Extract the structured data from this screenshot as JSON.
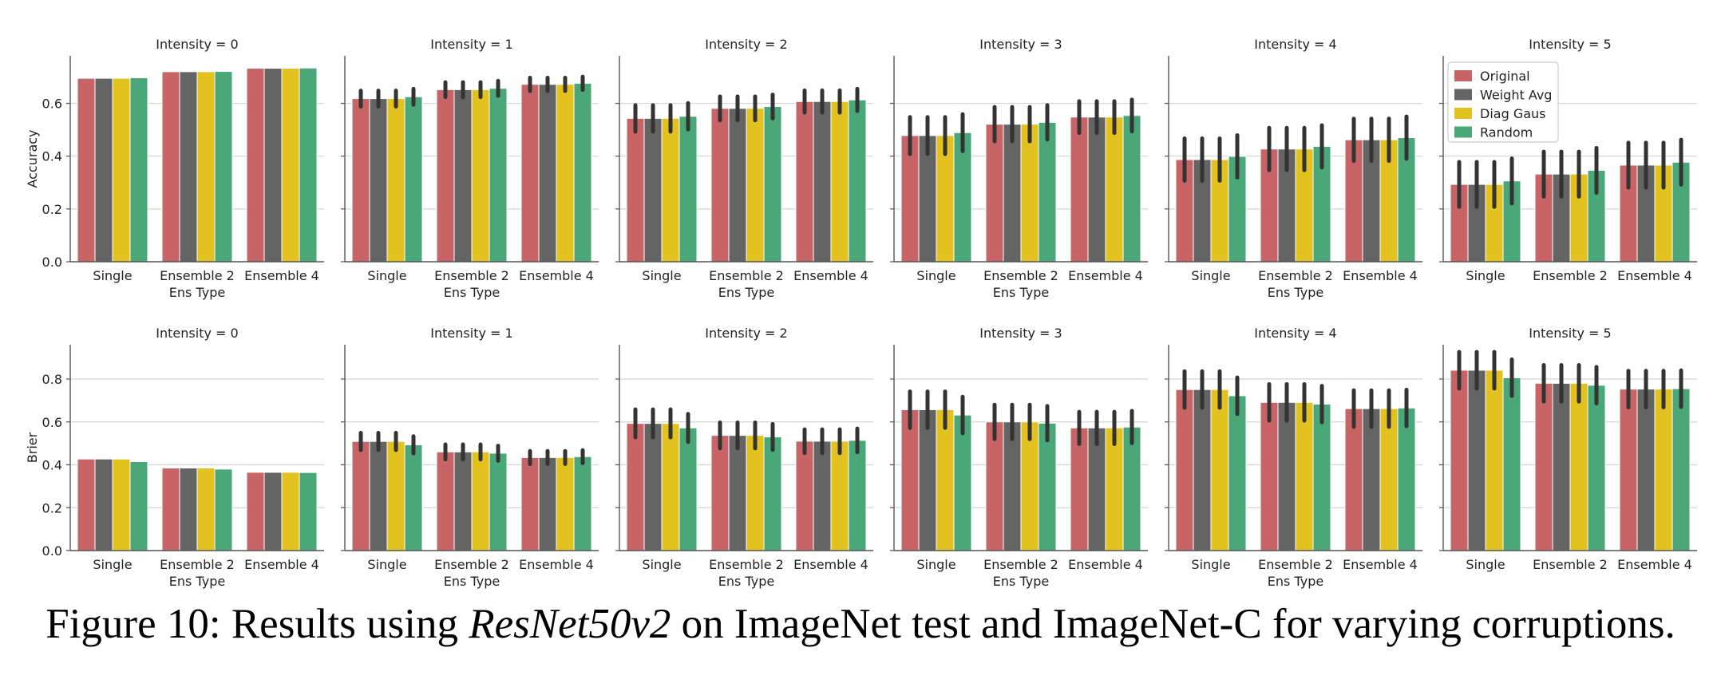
{
  "colors": {
    "Original": "#c96466",
    "Weight Avg": "#646464",
    "Diag Gaus": "#e3c11f",
    "Random": "#4aa778",
    "errbar": "#333333",
    "grid": "#d4d4d4",
    "axis": "#555555"
  },
  "legend": {
    "panel": "row1-intensity-5",
    "placement": "top-left",
    "entries": [
      "Original",
      "Weight Avg",
      "Diag Gaus",
      "Random"
    ]
  },
  "caption": {
    "prefix": "Figure 10: Results using ",
    "model": "ResNet50v2",
    "suffix": " on ImageNet test and ImageNet-C for varying corruptions."
  },
  "chart_data": [
    {
      "type": "bar",
      "row": "accuracy",
      "ylabel": "Accuracy",
      "xlabel": "Ens Type",
      "yticks": [
        0.0,
        0.2,
        0.4,
        0.6
      ],
      "ylim": [
        0,
        0.78
      ],
      "grid": true,
      "categories": [
        "Single",
        "Ensemble 2",
        "Ensemble 4"
      ],
      "panels": [
        {
          "title": "Intensity = 0",
          "series": [
            {
              "name": "Original",
              "values": [
                0.695,
                0.72,
                0.733
              ],
              "err": [
                0,
                0,
                0
              ]
            },
            {
              "name": "Weight Avg",
              "values": [
                0.695,
                0.72,
                0.733
              ],
              "err": [
                0,
                0,
                0
              ]
            },
            {
              "name": "Diag Gaus",
              "values": [
                0.695,
                0.72,
                0.733
              ],
              "err": [
                0,
                0,
                0
              ]
            },
            {
              "name": "Random",
              "values": [
                0.697,
                0.721,
                0.734
              ],
              "err": [
                0,
                0,
                0
              ]
            }
          ]
        },
        {
          "title": "Intensity = 1",
          "series": [
            {
              "name": "Original",
              "values": [
                0.618,
                0.652,
                0.672
              ],
              "err": [
                0.03,
                0.028,
                0.025
              ]
            },
            {
              "name": "Weight Avg",
              "values": [
                0.618,
                0.652,
                0.672
              ],
              "err": [
                0.03,
                0.028,
                0.025
              ]
            },
            {
              "name": "Diag Gaus",
              "values": [
                0.618,
                0.652,
                0.672
              ],
              "err": [
                0.03,
                0.028,
                0.025
              ]
            },
            {
              "name": "Random",
              "values": [
                0.625,
                0.657,
                0.676
              ],
              "err": [
                0.03,
                0.028,
                0.025
              ]
            }
          ]
        },
        {
          "title": "Intensity = 2",
          "series": [
            {
              "name": "Original",
              "values": [
                0.543,
                0.581,
                0.607
              ],
              "err": [
                0.05,
                0.045,
                0.042
              ]
            },
            {
              "name": "Weight Avg",
              "values": [
                0.543,
                0.581,
                0.607
              ],
              "err": [
                0.05,
                0.045,
                0.042
              ]
            },
            {
              "name": "Diag Gaus",
              "values": [
                0.543,
                0.581,
                0.607
              ],
              "err": [
                0.05,
                0.045,
                0.042
              ]
            },
            {
              "name": "Random",
              "values": [
                0.551,
                0.588,
                0.613
              ],
              "err": [
                0.05,
                0.045,
                0.042
              ]
            }
          ]
        },
        {
          "title": "Intensity = 3",
          "series": [
            {
              "name": "Original",
              "values": [
                0.478,
                0.521,
                0.548
              ],
              "err": [
                0.07,
                0.065,
                0.06
              ]
            },
            {
              "name": "Weight Avg",
              "values": [
                0.478,
                0.521,
                0.548
              ],
              "err": [
                0.07,
                0.065,
                0.06
              ]
            },
            {
              "name": "Diag Gaus",
              "values": [
                0.478,
                0.521,
                0.548
              ],
              "err": [
                0.07,
                0.065,
                0.06
              ]
            },
            {
              "name": "Random",
              "values": [
                0.489,
                0.528,
                0.554
              ],
              "err": [
                0.07,
                0.065,
                0.06
              ]
            }
          ]
        },
        {
          "title": "Intensity = 4",
          "series": [
            {
              "name": "Original",
              "values": [
                0.387,
                0.427,
                0.462
              ],
              "err": [
                0.08,
                0.08,
                0.08
              ]
            },
            {
              "name": "Weight Avg",
              "values": [
                0.387,
                0.427,
                0.462
              ],
              "err": [
                0.08,
                0.08,
                0.08
              ]
            },
            {
              "name": "Diag Gaus",
              "values": [
                0.387,
                0.427,
                0.462
              ],
              "err": [
                0.08,
                0.08,
                0.08
              ]
            },
            {
              "name": "Random",
              "values": [
                0.399,
                0.437,
                0.47
              ],
              "err": [
                0.08,
                0.08,
                0.08
              ]
            }
          ]
        },
        {
          "title": "Intensity = 5",
          "series": [
            {
              "name": "Original",
              "values": [
                0.293,
                0.332,
                0.366
              ],
              "err": [
                0.085,
                0.085,
                0.085
              ]
            },
            {
              "name": "Weight Avg",
              "values": [
                0.293,
                0.332,
                0.366
              ],
              "err": [
                0.085,
                0.085,
                0.085
              ]
            },
            {
              "name": "Diag Gaus",
              "values": [
                0.293,
                0.332,
                0.366
              ],
              "err": [
                0.085,
                0.085,
                0.085
              ]
            },
            {
              "name": "Random",
              "values": [
                0.306,
                0.346,
                0.377
              ],
              "err": [
                0.085,
                0.085,
                0.085
              ]
            }
          ]
        }
      ]
    },
    {
      "type": "bar",
      "row": "brier",
      "ylabel": "Brier",
      "xlabel": "Ens Type",
      "yticks": [
        0.0,
        0.2,
        0.4,
        0.6,
        0.8
      ],
      "ylim": [
        0,
        0.96
      ],
      "grid": true,
      "categories": [
        "Single",
        "Ensemble 2",
        "Ensemble 4"
      ],
      "panels": [
        {
          "title": "Intensity = 0",
          "series": [
            {
              "name": "Original",
              "values": [
                0.427,
                0.385,
                0.365
              ],
              "err": [
                0,
                0,
                0
              ]
            },
            {
              "name": "Weight Avg",
              "values": [
                0.427,
                0.385,
                0.365
              ],
              "err": [
                0,
                0,
                0
              ]
            },
            {
              "name": "Diag Gaus",
              "values": [
                0.427,
                0.385,
                0.365
              ],
              "err": [
                0,
                0,
                0
              ]
            },
            {
              "name": "Random",
              "values": [
                0.415,
                0.38,
                0.364
              ],
              "err": [
                0,
                0,
                0
              ]
            }
          ]
        },
        {
          "title": "Intensity = 1",
          "series": [
            {
              "name": "Original",
              "values": [
                0.509,
                0.46,
                0.434
              ],
              "err": [
                0.04,
                0.035,
                0.03
              ]
            },
            {
              "name": "Weight Avg",
              "values": [
                0.509,
                0.46,
                0.434
              ],
              "err": [
                0.04,
                0.035,
                0.03
              ]
            },
            {
              "name": "Diag Gaus",
              "values": [
                0.509,
                0.46,
                0.434
              ],
              "err": [
                0.04,
                0.035,
                0.03
              ]
            },
            {
              "name": "Random",
              "values": [
                0.493,
                0.454,
                0.438
              ],
              "err": [
                0.04,
                0.035,
                0.03
              ]
            }
          ]
        },
        {
          "title": "Intensity = 2",
          "series": [
            {
              "name": "Original",
              "values": [
                0.593,
                0.537,
                0.51
              ],
              "err": [
                0.065,
                0.06,
                0.055
              ]
            },
            {
              "name": "Weight Avg",
              "values": [
                0.593,
                0.537,
                0.51
              ],
              "err": [
                0.065,
                0.06,
                0.055
              ]
            },
            {
              "name": "Diag Gaus",
              "values": [
                0.593,
                0.537,
                0.51
              ],
              "err": [
                0.065,
                0.06,
                0.055
              ]
            },
            {
              "name": "Random",
              "values": [
                0.572,
                0.53,
                0.514
              ],
              "err": [
                0.065,
                0.06,
                0.055
              ]
            }
          ]
        },
        {
          "title": "Intensity = 3",
          "series": [
            {
              "name": "Original",
              "values": [
                0.657,
                0.6,
                0.572
              ],
              "err": [
                0.085,
                0.08,
                0.075
              ]
            },
            {
              "name": "Weight Avg",
              "values": [
                0.657,
                0.6,
                0.572
              ],
              "err": [
                0.085,
                0.08,
                0.075
              ]
            },
            {
              "name": "Diag Gaus",
              "values": [
                0.657,
                0.6,
                0.572
              ],
              "err": [
                0.085,
                0.08,
                0.075
              ]
            },
            {
              "name": "Random",
              "values": [
                0.632,
                0.594,
                0.576
              ],
              "err": [
                0.085,
                0.08,
                0.075
              ]
            }
          ]
        },
        {
          "title": "Intensity = 4",
          "series": [
            {
              "name": "Original",
              "values": [
                0.751,
                0.691,
                0.662
              ],
              "err": [
                0.085,
                0.085,
                0.085
              ]
            },
            {
              "name": "Weight Avg",
              "values": [
                0.751,
                0.691,
                0.662
              ],
              "err": [
                0.085,
                0.085,
                0.085
              ]
            },
            {
              "name": "Diag Gaus",
              "values": [
                0.751,
                0.691,
                0.662
              ],
              "err": [
                0.085,
                0.085,
                0.085
              ]
            },
            {
              "name": "Random",
              "values": [
                0.722,
                0.683,
                0.665
              ],
              "err": [
                0.085,
                0.085,
                0.085
              ]
            }
          ]
        },
        {
          "title": "Intensity = 5",
          "series": [
            {
              "name": "Original",
              "values": [
                0.841,
                0.78,
                0.753
              ],
              "err": [
                0.085,
                0.085,
                0.085
              ]
            },
            {
              "name": "Weight Avg",
              "values": [
                0.841,
                0.78,
                0.753
              ],
              "err": [
                0.085,
                0.085,
                0.085
              ]
            },
            {
              "name": "Diag Gaus",
              "values": [
                0.841,
                0.78,
                0.753
              ],
              "err": [
                0.085,
                0.085,
                0.085
              ]
            },
            {
              "name": "Random",
              "values": [
                0.806,
                0.771,
                0.755
              ],
              "err": [
                0.085,
                0.085,
                0.085
              ]
            }
          ]
        }
      ]
    }
  ]
}
